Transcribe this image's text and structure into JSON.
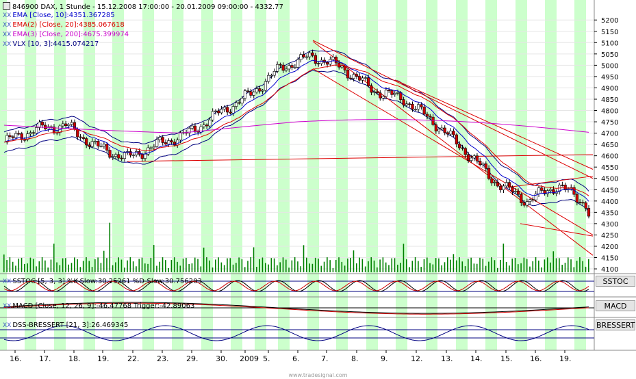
{
  "header": {
    "title": "846900  DAX, 1 Stunde - 15.12.2008 17:00:00 - 20.01.2009 09:00:00 - 4332.77"
  },
  "legend": {
    "ema10": "EMA [Close, 10]:4351.367285",
    "ema20": "EMA(2) [Close, 20]:4385.067618",
    "ema200": "EMA(3) [Close, 200]:4675.399974",
    "vlx": "VLX [10, 3]:4415.074217",
    "prefix": "XX"
  },
  "panels": {
    "sstoc_label": "SSTOC [5, 3, 3] %K-Slow:30.25261  %D-Slow:30.756203",
    "sstoc_tag": "SSTOC",
    "macd_label": "MACD [Close, 12, 26, 9]:-46.47768  Trigger:-42.89063",
    "macd_tag": "MACD",
    "dss_label": "DSS-BRESSERT [21, 3]:26.469345",
    "dss_tag": "BRESSERT"
  },
  "watermark": "www.tradesignal.com",
  "colors": {
    "up_candle": "#ffffff",
    "down_candle": "#cc0000",
    "ema10": "#0000cc",
    "ema20": "#dd0000",
    "ema200": "#cc00cc",
    "vlx": "#000080",
    "volume": "#008000",
    "session_band": "#ccffcc",
    "trendline": "#dd0000"
  },
  "chart_data": {
    "type": "candlestick",
    "y_axis": {
      "ticks": [
        4100,
        4150,
        4200,
        4250,
        4300,
        4350,
        4400,
        4450,
        4500,
        4550,
        4600,
        4650,
        4700,
        4750,
        4800,
        4850,
        4900,
        4950,
        5000,
        5050,
        5100,
        5150,
        5200
      ],
      "ylim": [
        4085,
        5240
      ]
    },
    "x_axis": {
      "labels": [
        "16.",
        "17.",
        "18.",
        "19.",
        "22.",
        "23.",
        "29.",
        "30.",
        "2009",
        "5.",
        "6.",
        "7.",
        "8.",
        "9.",
        "12.",
        "13.",
        "14.",
        "15.",
        "16.",
        "19."
      ]
    },
    "series": [
      {
        "name": "Close",
        "day_points": [
          [
            "16.",
            4660
          ],
          [
            "17.",
            4715
          ],
          [
            "18.",
            4735
          ],
          [
            "19.",
            4640
          ],
          [
            "22.",
            4590
          ],
          [
            "23.",
            4650
          ],
          [
            "29.",
            4700
          ],
          [
            "30.",
            4790
          ],
          [
            "2009",
            4870
          ],
          [
            "5.",
            4990
          ],
          [
            "6.",
            5040
          ],
          [
            "7.",
            4990
          ],
          [
            "8.",
            4890
          ],
          [
            "9.",
            4850
          ],
          [
            "12.",
            4745
          ],
          [
            "13.",
            4620
          ],
          [
            "14.",
            4480
          ],
          [
            "15.",
            4400
          ],
          [
            "16.",
            4470
          ],
          [
            "19.",
            4380
          ]
        ],
        "last": 4332.77
      }
    ]
  }
}
